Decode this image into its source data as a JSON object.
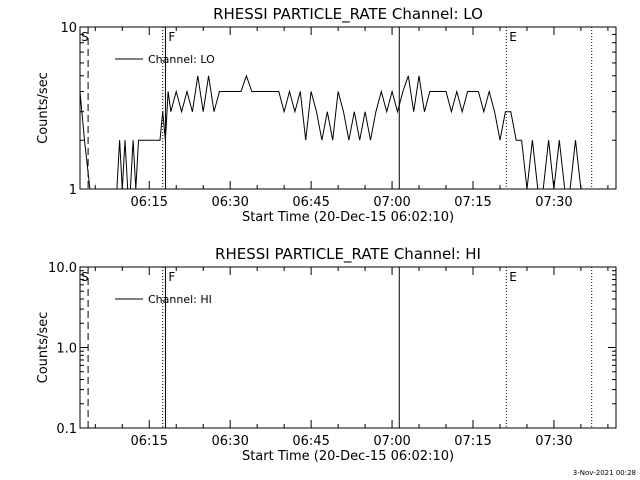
{
  "footer_date": "3-Nov-2021 00:28",
  "chart_data": [
    {
      "type": "line",
      "title": "RHESSI PARTICLE_RATE Channel: LO",
      "xlabel": "Start Time (20-Dec-15 06:02:10)",
      "ylabel": "Counts/sec",
      "yscale": "log",
      "ylim": [
        1,
        10
      ],
      "yticks": [
        "1",
        "10"
      ],
      "xlim": [
        "06:02:10",
        "07:41:30"
      ],
      "xticks": [
        "06:15",
        "06:30",
        "06:45",
        "07:00",
        "07:15",
        "07:30"
      ],
      "legend": {
        "entries": [
          "Channel: LO"
        ],
        "position": "top-left"
      },
      "markers": [
        {
          "label": "S",
          "time": "06:03:40",
          "style": "dashed"
        },
        {
          "label": "F",
          "time": "06:18:00",
          "style": "solid"
        },
        {
          "label": "",
          "time": "07:01:20",
          "style": "solid"
        },
        {
          "label": "E",
          "time": "07:21:10",
          "style": "dotted"
        }
      ],
      "extra_lines": [
        {
          "time": "06:17:30",
          "style": "dotted"
        },
        {
          "time": "07:37:00",
          "style": "dotted"
        }
      ],
      "series": [
        {
          "name": "Channel: LO",
          "points": [
            [
              "06:02:10",
              4
            ],
            [
              "06:03:00",
              2
            ],
            [
              "06:04:00",
              1
            ],
            [
              "06:05:00",
              1
            ],
            [
              "06:08:00",
              1
            ],
            [
              "06:09:00",
              1
            ],
            [
              "06:09:30",
              2
            ],
            [
              "06:10:00",
              1
            ],
            [
              "06:10:30",
              2
            ],
            [
              "06:11:00",
              1
            ],
            [
              "06:11:30",
              1
            ],
            [
              "06:12:00",
              2
            ],
            [
              "06:12:30",
              1
            ],
            [
              "06:13:00",
              2
            ],
            [
              "06:17:00",
              2
            ],
            [
              "06:17:30",
              3
            ],
            [
              "06:18:00",
              2
            ],
            [
              "06:18:30",
              4
            ],
            [
              "06:19:00",
              3
            ],
            [
              "06:20:00",
              4
            ],
            [
              "06:21:00",
              3
            ],
            [
              "06:22:00",
              4
            ],
            [
              "06:23:00",
              3
            ],
            [
              "06:24:00",
              5
            ],
            [
              "06:25:00",
              3
            ],
            [
              "06:26:00",
              5
            ],
            [
              "06:27:00",
              3
            ],
            [
              "06:28:00",
              4
            ],
            [
              "06:32:00",
              4
            ],
            [
              "06:33:00",
              5
            ],
            [
              "06:34:00",
              4
            ],
            [
              "06:39:00",
              4
            ],
            [
              "06:40:00",
              3
            ],
            [
              "06:41:00",
              4
            ],
            [
              "06:42:00",
              3
            ],
            [
              "06:43:00",
              4
            ],
            [
              "06:44:00",
              2
            ],
            [
              "06:45:00",
              4
            ],
            [
              "06:46:00",
              3
            ],
            [
              "06:47:00",
              2
            ],
            [
              "06:48:00",
              3
            ],
            [
              "06:49:00",
              2
            ],
            [
              "06:50:00",
              4
            ],
            [
              "06:51:00",
              3
            ],
            [
              "06:52:00",
              2
            ],
            [
              "06:53:00",
              3
            ],
            [
              "06:54:00",
              2
            ],
            [
              "06:55:00",
              3
            ],
            [
              "06:56:00",
              2
            ],
            [
              "06:57:00",
              3
            ],
            [
              "06:58:00",
              4
            ],
            [
              "06:59:00",
              3
            ],
            [
              "07:00:00",
              4
            ],
            [
              "07:01:00",
              3
            ],
            [
              "07:02:00",
              4
            ],
            [
              "07:03:00",
              5
            ],
            [
              "07:04:00",
              3
            ],
            [
              "07:05:00",
              5
            ],
            [
              "07:06:00",
              3
            ],
            [
              "07:07:00",
              4
            ],
            [
              "07:10:00",
              4
            ],
            [
              "07:11:00",
              3
            ],
            [
              "07:12:00",
              4
            ],
            [
              "07:13:00",
              3
            ],
            [
              "07:14:00",
              4
            ],
            [
              "07:16:00",
              4
            ],
            [
              "07:17:00",
              3
            ],
            [
              "07:18:00",
              4
            ],
            [
              "07:19:00",
              3
            ],
            [
              "07:20:00",
              2
            ],
            [
              "07:21:00",
              3
            ],
            [
              "07:22:00",
              3
            ],
            [
              "07:23:00",
              2
            ],
            [
              "07:24:00",
              2
            ],
            [
              "07:25:00",
              1
            ],
            [
              "07:26:00",
              2
            ],
            [
              "07:27:00",
              1
            ],
            [
              "07:28:00",
              1
            ],
            [
              "07:29:00",
              2
            ],
            [
              "07:30:00",
              1
            ],
            [
              "07:31:00",
              2
            ],
            [
              "07:32:00",
              1
            ],
            [
              "07:33:00",
              1
            ],
            [
              "07:34:00",
              2
            ],
            [
              "07:35:00",
              1
            ],
            [
              "07:36:00",
              1
            ]
          ]
        }
      ]
    },
    {
      "type": "line",
      "title": "RHESSI PARTICLE_RATE Channel: HI",
      "xlabel": "Start Time (20-Dec-15 06:02:10)",
      "ylabel": "Counts/sec",
      "yscale": "log",
      "ylim": [
        0.1,
        10
      ],
      "yticks": [
        "0.1",
        "1.0",
        "10.0"
      ],
      "xlim": [
        "06:02:10",
        "07:41:30"
      ],
      "xticks": [
        "06:15",
        "06:30",
        "06:45",
        "07:00",
        "07:15",
        "07:30"
      ],
      "legend": {
        "entries": [
          "Channel: HI"
        ],
        "position": "top-left"
      },
      "markers": [
        {
          "label": "S",
          "time": "06:03:40",
          "style": "dashed"
        },
        {
          "label": "F",
          "time": "06:18:00",
          "style": "solid"
        },
        {
          "label": "",
          "time": "07:01:20",
          "style": "solid"
        },
        {
          "label": "E",
          "time": "07:21:10",
          "style": "dotted"
        }
      ],
      "extra_lines": [
        {
          "time": "06:17:30",
          "style": "dotted"
        },
        {
          "time": "07:37:00",
          "style": "dotted"
        }
      ],
      "series": [
        {
          "name": "Channel: HI",
          "points": []
        }
      ]
    }
  ]
}
